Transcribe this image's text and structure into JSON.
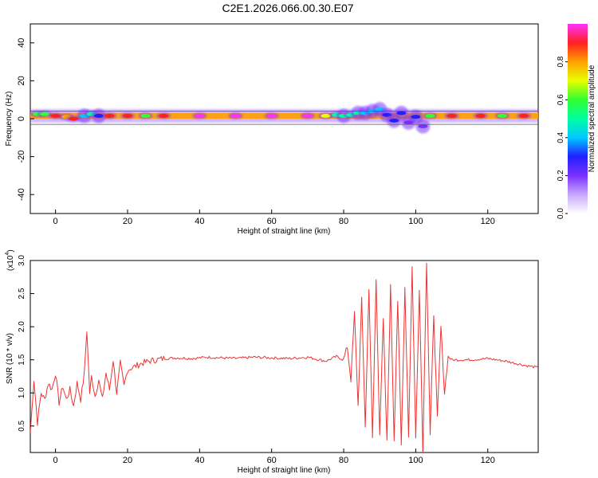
{
  "figure_title": "C2E1.2026.066.00.30.E07",
  "chart_data": [
    {
      "type": "heatmap",
      "panel": "spectrogram",
      "xlabel": "Height of straight line (km)",
      "ylabel": "Frequency (Hz)",
      "xlim": [
        -7,
        134
      ],
      "ylim": [
        -50,
        50
      ],
      "x_ticks": [
        0,
        20,
        40,
        60,
        80,
        100,
        120
      ],
      "y_ticks": [
        -40,
        -20,
        0,
        20,
        40
      ],
      "colorbar": {
        "label": "Normalized spectral amplitude",
        "range": [
          0,
          1
        ],
        "ticks": [
          "0.0",
          "0.2",
          "0.4",
          "0.6",
          "0.8"
        ],
        "tick_values": [
          0.0,
          0.2,
          0.4,
          0.6,
          0.8
        ],
        "colormap": [
          "#ffffff",
          "#c8a8ff",
          "#7a30ff",
          "#2020ff",
          "#00c8ff",
          "#00ffa0",
          "#30ff30",
          "#e8ff00",
          "#ffa000",
          "#ff2020",
          "#ff30ff"
        ]
      },
      "band": {
        "center_freq_hz": 1.5,
        "half_width_hz": 1.5,
        "guide_lines_hz": [
          -3,
          4
        ]
      },
      "cells": [
        {
          "x": -5,
          "f": 2.5,
          "a": 0.6
        },
        {
          "x": -3,
          "f": 2.5,
          "a": 0.55
        },
        {
          "x": 0,
          "f": 1.5,
          "a": 0.9
        },
        {
          "x": 3,
          "f": 1.0,
          "a": 0.8
        },
        {
          "x": 5,
          "f": 0.0,
          "a": 0.9
        },
        {
          "x": 8,
          "f": 1.5,
          "a": 0.4
        },
        {
          "x": 10,
          "f": 2.5,
          "a": 0.5
        },
        {
          "x": 12,
          "f": 1.5,
          "a": 0.3
        },
        {
          "x": 15,
          "f": 1.5,
          "a": 0.9
        },
        {
          "x": 20,
          "f": 1.5,
          "a": 0.9
        },
        {
          "x": 25,
          "f": 1.5,
          "a": 0.6
        },
        {
          "x": 30,
          "f": 1.5,
          "a": 0.85
        },
        {
          "x": 40,
          "f": 1.5,
          "a": 0.95
        },
        {
          "x": 50,
          "f": 1.5,
          "a": 0.95
        },
        {
          "x": 60,
          "f": 1.5,
          "a": 0.95
        },
        {
          "x": 70,
          "f": 1.5,
          "a": 0.95
        },
        {
          "x": 75,
          "f": 1.5,
          "a": 0.7
        },
        {
          "x": 78,
          "f": 2.0,
          "a": 0.5
        },
        {
          "x": 80,
          "f": 1.5,
          "a": 0.45
        },
        {
          "x": 82,
          "f": 2.0,
          "a": 0.5
        },
        {
          "x": 84,
          "f": 3.0,
          "a": 0.45
        },
        {
          "x": 86,
          "f": 3.0,
          "a": 0.4
        },
        {
          "x": 88,
          "f": 4.0,
          "a": 0.4
        },
        {
          "x": 90,
          "f": 5.0,
          "a": 0.35
        },
        {
          "x": 92,
          "f": 2.0,
          "a": 0.3
        },
        {
          "x": 94,
          "f": -1.0,
          "a": 0.25
        },
        {
          "x": 96,
          "f": 3.0,
          "a": 0.25
        },
        {
          "x": 98,
          "f": -2.0,
          "a": 0.2
        },
        {
          "x": 100,
          "f": 1.0,
          "a": 0.25
        },
        {
          "x": 102,
          "f": -4.0,
          "a": 0.2
        },
        {
          "x": 104,
          "f": 1.5,
          "a": 0.6
        },
        {
          "x": 110,
          "f": 1.5,
          "a": 0.9
        },
        {
          "x": 118,
          "f": 1.5,
          "a": 0.9
        },
        {
          "x": 124,
          "f": 1.5,
          "a": 0.6
        },
        {
          "x": 130,
          "f": 1.5,
          "a": 0.9
        }
      ]
    },
    {
      "type": "line",
      "panel": "snr",
      "xlabel": "Height of straight line (km)",
      "ylabel": "SNR (10 * v/v)",
      "multiplier": "(x10",
      "multiplier_exp": "4",
      "multiplier_close": ")",
      "xlim": [
        -7,
        134
      ],
      "ylim": [
        0.1,
        3.0
      ],
      "x_ticks": [
        0,
        20,
        40,
        60,
        80,
        100,
        120
      ],
      "y_ticks": [
        0.5,
        1.0,
        1.5,
        2.0,
        2.5,
        3.0
      ],
      "y_tick_labels": [
        "0.5",
        "1.0",
        "1.5",
        "2.0",
        "2.5",
        "3.0"
      ],
      "series": [
        {
          "color": "#ee3333",
          "x": [
            -7,
            -6,
            -5,
            -4,
            -3,
            -2,
            -1,
            0,
            1,
            2,
            3,
            4,
            5,
            6,
            7,
            8,
            8.7,
            9.5,
            10,
            11,
            12,
            13,
            14,
            15,
            16,
            17,
            18,
            19,
            20,
            22,
            24,
            26,
            28,
            30,
            34,
            38,
            42,
            46,
            50,
            55,
            60,
            65,
            70,
            75,
            78,
            80,
            81,
            82,
            83,
            84,
            85,
            86,
            87,
            88,
            89,
            90,
            91,
            92,
            93,
            94,
            95,
            96,
            97,
            98,
            99,
            100,
            101,
            102,
            103,
            104,
            105,
            106,
            107,
            108,
            109,
            110,
            115,
            120,
            125,
            130,
            134
          ],
          "y": [
            0.4,
            1.2,
            0.55,
            1.0,
            0.9,
            1.15,
            1.05,
            1.3,
            0.85,
            1.1,
            0.9,
            1.05,
            0.8,
            1.15,
            0.9,
            1.3,
            1.95,
            1.0,
            1.25,
            0.95,
            1.2,
            0.9,
            1.3,
            1.05,
            1.5,
            1.0,
            1.45,
            1.1,
            1.35,
            1.4,
            1.45,
            1.48,
            1.5,
            1.52,
            1.53,
            1.52,
            1.54,
            1.53,
            1.52,
            1.54,
            1.53,
            1.52,
            1.54,
            1.48,
            1.55,
            1.5,
            1.7,
            1.2,
            2.2,
            0.8,
            2.4,
            0.5,
            2.6,
            0.3,
            2.7,
            0.4,
            2.1,
            0.25,
            2.6,
            0.3,
            2.4,
            0.2,
            2.6,
            0.35,
            2.9,
            0.3,
            2.6,
            0.1,
            3.0,
            0.35,
            2.2,
            0.6,
            2.0,
            1.0,
            1.55,
            1.5,
            1.5,
            1.52,
            1.48,
            1.42,
            1.38
          ]
        }
      ]
    }
  ]
}
